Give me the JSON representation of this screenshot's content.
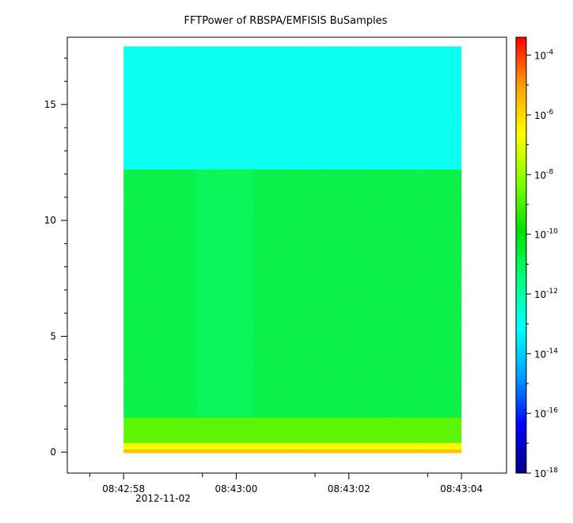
{
  "chart_data": {
    "type": "heatmap",
    "title": "FFTPower of RBSPA/EMFISIS  BuSamples",
    "xlabel": "",
    "ylabel": "",
    "x_date_label": "2012-11-02",
    "x_range_seconds": [
      57.0,
      64.8
    ],
    "x_ticks": [
      {
        "value": 58,
        "label": "08:42:58"
      },
      {
        "value": 60,
        "label": "08:43:00"
      },
      {
        "value": 62,
        "label": "08:43:02"
      },
      {
        "value": 64,
        "label": "08:43:04"
      }
    ],
    "x_minor_ticks": [
      57.4,
      59.4,
      61.4,
      63.4
    ],
    "ylim": [
      -0.9,
      17.9
    ],
    "y_ticks": [
      {
        "value": 0,
        "label": "0"
      },
      {
        "value": 5,
        "label": "5"
      },
      {
        "value": 10,
        "label": "10"
      },
      {
        "value": 15,
        "label": "15"
      }
    ],
    "data_extent": {
      "x": [
        58.0,
        64.0
      ],
      "y": [
        0,
        17.5
      ]
    },
    "regions": [
      {
        "y_range": [
          12.2,
          17.5
        ],
        "log10_power": -13.0
      },
      {
        "y_range": [
          1.5,
          12.2
        ],
        "log10_power": -10.8
      },
      {
        "y_range": [
          0.4,
          1.5
        ],
        "log10_power": -8.8
      },
      {
        "y_range": [
          0,
          0.4
        ],
        "log10_power": -6.8
      }
    ],
    "colorbar": {
      "scale": "log",
      "range_exponent": [
        -18,
        -3.4
      ],
      "ticks": [
        {
          "exponent": -4,
          "base": "10",
          "exp": "-4"
        },
        {
          "exponent": -6,
          "base": "10",
          "exp": "-6"
        },
        {
          "exponent": -8,
          "base": "10",
          "exp": "-8"
        },
        {
          "exponent": -10,
          "base": "10",
          "exp": "-10"
        },
        {
          "exponent": -12,
          "base": "10",
          "exp": "-12"
        },
        {
          "exponent": -14,
          "base": "10",
          "exp": "-14"
        },
        {
          "exponent": -16,
          "base": "10",
          "exp": "-16"
        },
        {
          "exponent": -18,
          "base": "10",
          "exp": "-18"
        }
      ],
      "colormap": [
        "#000080",
        "#0000ff",
        "#00a0ff",
        "#00ffff",
        "#00ff80",
        "#00e000",
        "#80ff00",
        "#ffff00",
        "#ffa000",
        "#ff0000"
      ]
    }
  }
}
